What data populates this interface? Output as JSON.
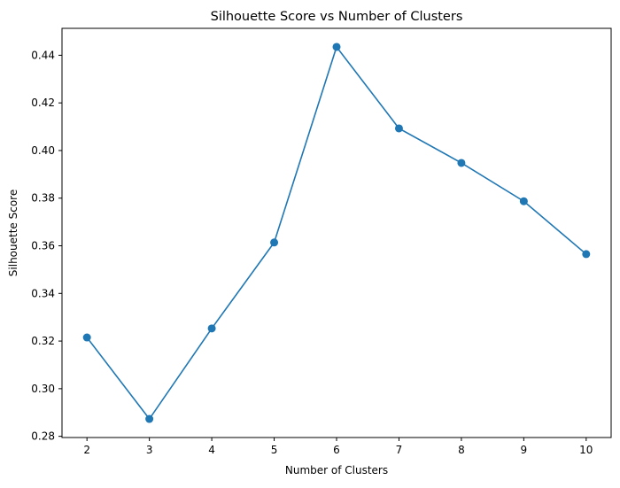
{
  "chart_data": {
    "type": "line",
    "title": "Silhouette Score vs Number of Clusters",
    "xlabel": "Number of Clusters",
    "ylabel": "Silhouette Score",
    "x": [
      2,
      3,
      4,
      5,
      6,
      7,
      8,
      9,
      10
    ],
    "series": [
      {
        "values": [
          0.3215,
          0.2873,
          0.3253,
          0.3614,
          0.4435,
          0.4093,
          0.3948,
          0.3787,
          0.3565
        ],
        "color": "#1f77b4"
      }
    ],
    "xlim": [
      1.6,
      10.4
    ],
    "ylim": [
      0.2795,
      0.4513
    ],
    "xticks": [
      "2",
      "3",
      "4",
      "5",
      "6",
      "7",
      "8",
      "9",
      "10"
    ],
    "yticks": [
      "0.28",
      "0.30",
      "0.32",
      "0.34",
      "0.36",
      "0.38",
      "0.40",
      "0.42",
      "0.44"
    ],
    "grid": false,
    "marker": "circle"
  }
}
